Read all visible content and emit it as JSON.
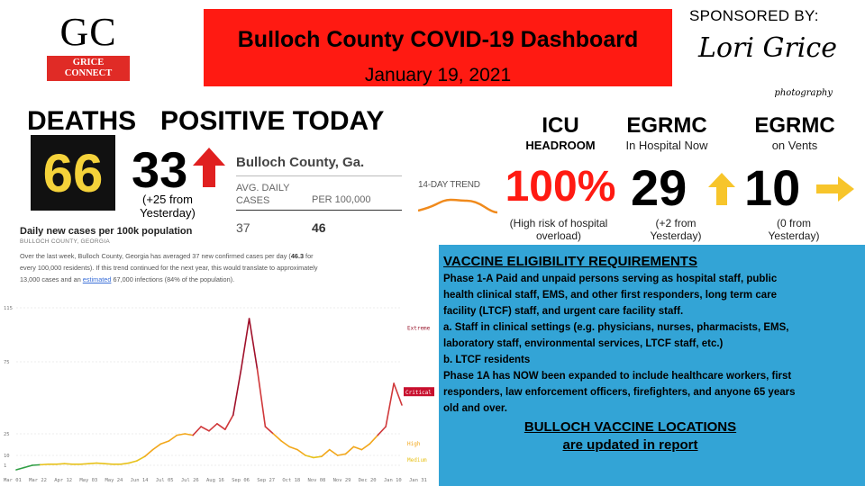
{
  "logo": {
    "initials": "GC",
    "line1": "GRICE",
    "line2": "CONNECT"
  },
  "banner": {
    "title": "Bulloch County COVID-19 Dashboard",
    "date": "January 19, 2021",
    "color": "#ff1a12"
  },
  "sponsor": {
    "label": "SPONSORED BY:",
    "name": "Lori Grice",
    "sub": "photography"
  },
  "deaths": {
    "label": "DEATHS",
    "value": "66"
  },
  "positive": {
    "label": "POSITIVE TODAY",
    "value": "33",
    "note": "(+25 from Yesterday)",
    "trend_icon": "arrow-up-red"
  },
  "bulloch_table": {
    "title": "Bulloch County, Ga.",
    "col1_line1": "AVG. DAILY",
    "col1_line2": "CASES",
    "col2": "PER 100,000",
    "val1": "37",
    "val2": "46"
  },
  "trend": {
    "label": "14-DAY TREND"
  },
  "icu": {
    "title": "ICU",
    "sub": "HEADROOM",
    "value": "100%",
    "note": "(High risk of hospital overload)"
  },
  "egrmc_hospital": {
    "title": "EGRMC",
    "sub": "In Hospital Now",
    "value": "29",
    "note": "(+2 from Yesterday)",
    "trend_icon": "arrow-up-yellow"
  },
  "egrmc_vents": {
    "title": "EGRMC",
    "sub": "on Vents",
    "value": "10",
    "note": "(0 from Yesterday)",
    "trend_icon": "arrow-right-yellow"
  },
  "daily_cases": {
    "title": "Daily new cases per 100k population",
    "subtitle": "BULLOCH COUNTY, GEORGIA",
    "text_a": "Over the last week, Bulloch County, Georgia has averaged 37 new confirmed cases per day (",
    "text_bold": "46.3",
    "text_b": " for every 100,000 residents). If this trend continued for the next year, this would translate to approximately 13,000 cases and an ",
    "text_link": "estimated",
    "text_c": " 67,000 infections (84% of the population)."
  },
  "chart_data": {
    "type": "line",
    "title": "",
    "xlabel": "",
    "ylabel": "",
    "y_ticks": [
      1,
      10,
      25,
      75,
      115
    ],
    "ylim": [
      0,
      115
    ],
    "x_ticks": [
      "Mar 01",
      "Mar 22",
      "Apr 12",
      "May 03",
      "May 24",
      "Jun 14",
      "Jul 05",
      "Jul 26",
      "Aug 16",
      "Sep 06",
      "Sep 27",
      "Oct 18",
      "Nov 08",
      "Nov 29",
      "Dec 20",
      "Jan 10",
      "Jan 31"
    ],
    "zones": [
      {
        "label": "Extreme",
        "value": 100,
        "color": "#9b1c31"
      },
      {
        "label": "Critical",
        "value": 53,
        "color": "#c8102e"
      },
      {
        "label": "High",
        "value": 18,
        "color": "#f2a71b"
      },
      {
        "label": "Medium",
        "value": 6,
        "color": "#e8c21c"
      }
    ],
    "grid": true,
    "series": [
      {
        "name": "",
        "x": [
          0,
          7,
          14,
          21,
          28,
          35,
          42,
          49,
          56,
          63,
          70,
          77,
          84,
          91,
          98,
          105,
          112,
          119,
          126,
          133,
          140,
          147,
          154,
          161,
          168,
          175,
          182,
          189,
          196,
          203,
          210,
          217,
          224,
          231,
          238,
          245,
          252,
          259,
          266,
          273,
          280,
          287,
          294,
          301,
          308,
          315,
          322,
          329,
          336
        ],
        "y": [
          0,
          0.5,
          1,
          1.5,
          2,
          2,
          2.5,
          2,
          2,
          2.5,
          3,
          2.5,
          2,
          2,
          3,
          5,
          9,
          14,
          18,
          20,
          24,
          25,
          24,
          30,
          27,
          32,
          28,
          38,
          70,
          107,
          70,
          30,
          25,
          20,
          16,
          14,
          10,
          8,
          9,
          14,
          10,
          11,
          16,
          14,
          18,
          24,
          30,
          60,
          45
        ]
      }
    ]
  }
}
